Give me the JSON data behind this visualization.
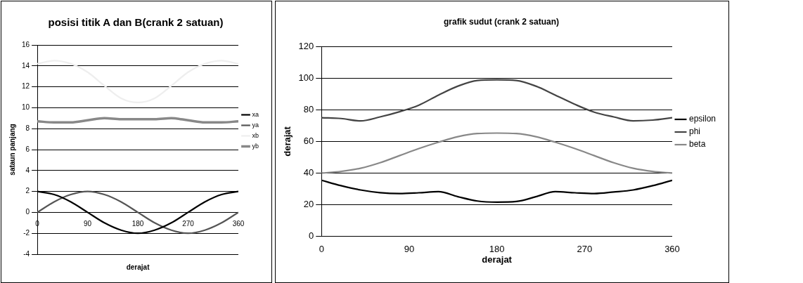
{
  "chart_data": [
    {
      "type": "line",
      "title": "posisi titik A dan B(crank 2 satuan)",
      "xlabel": "derajat",
      "ylabel": "sataun panjang",
      "x": [
        0,
        30,
        60,
        90,
        120,
        150,
        180,
        210,
        240,
        270,
        300,
        330,
        360
      ],
      "xlim": [
        0,
        360
      ],
      "xticks": [
        0,
        90,
        180,
        270,
        360
      ],
      "ylim": [
        -4,
        16
      ],
      "yticks": [
        -4,
        -2,
        0,
        2,
        4,
        6,
        8,
        10,
        12,
        14,
        16
      ],
      "grid": "y",
      "legend": "right",
      "marker": "none",
      "line_style": "solid",
      "series": [
        {
          "name": "xa",
          "color": "#000000",
          "values": [
            2,
            1.7,
            1,
            0,
            -1,
            -1.7,
            -2,
            -1.7,
            -1,
            0,
            1,
            1.7,
            2
          ]
        },
        {
          "name": "ya",
          "color": "#555555",
          "values": [
            0,
            1,
            1.7,
            2,
            1.7,
            1,
            0,
            -1,
            -1.7,
            -2,
            -1.7,
            -1,
            0
          ]
        },
        {
          "name": "xb",
          "color": "#eeeeee",
          "values": [
            14.2,
            14.5,
            14.2,
            13.4,
            12.1,
            10.9,
            10.5,
            10.9,
            12.1,
            13.4,
            14.2,
            14.5,
            14.2
          ]
        },
        {
          "name": "yb",
          "color": "#888888",
          "values": [
            8.7,
            8.6,
            8.6,
            8.8,
            9.0,
            8.9,
            8.9,
            8.9,
            9.0,
            8.8,
            8.6,
            8.6,
            8.7
          ]
        }
      ]
    },
    {
      "type": "line",
      "title": "grafik sudut (crank 2 satuan)",
      "xlabel": "derajat",
      "ylabel": "derajat",
      "x": [
        0,
        20,
        40,
        60,
        80,
        100,
        120,
        140,
        160,
        180,
        200,
        220,
        240,
        260,
        280,
        300,
        320,
        340,
        360
      ],
      "xlim": [
        0,
        360
      ],
      "xticks": [
        0,
        90,
        180,
        270,
        360
      ],
      "ylim": [
        0,
        120
      ],
      "yticks": [
        0,
        20,
        40,
        60,
        80,
        100,
        120
      ],
      "grid": "y",
      "legend": "right",
      "marker": "none",
      "line_style": "solid",
      "series": [
        {
          "name": "epsilon",
          "color": "#000000",
          "values": [
            35.4,
            32,
            29.3,
            27.6,
            27,
            27.5,
            28.2,
            25,
            22.3,
            21.6,
            22,
            25,
            28.2,
            27.5,
            27,
            28,
            29.3,
            32,
            35.4
          ]
        },
        {
          "name": "phi",
          "color": "#444444",
          "values": [
            75,
            74.5,
            73,
            75.5,
            78.8,
            83,
            89.3,
            95,
            98.6,
            99,
            98.6,
            95,
            89.3,
            83.5,
            78.5,
            75.5,
            73,
            73.5,
            75
          ]
        },
        {
          "name": "beta",
          "color": "#888888",
          "values": [
            40,
            41,
            43,
            46.5,
            51,
            55.5,
            59.5,
            63,
            65,
            65.3,
            65,
            63,
            59.5,
            55.5,
            51,
            46.5,
            43,
            41,
            40
          ]
        }
      ]
    }
  ]
}
